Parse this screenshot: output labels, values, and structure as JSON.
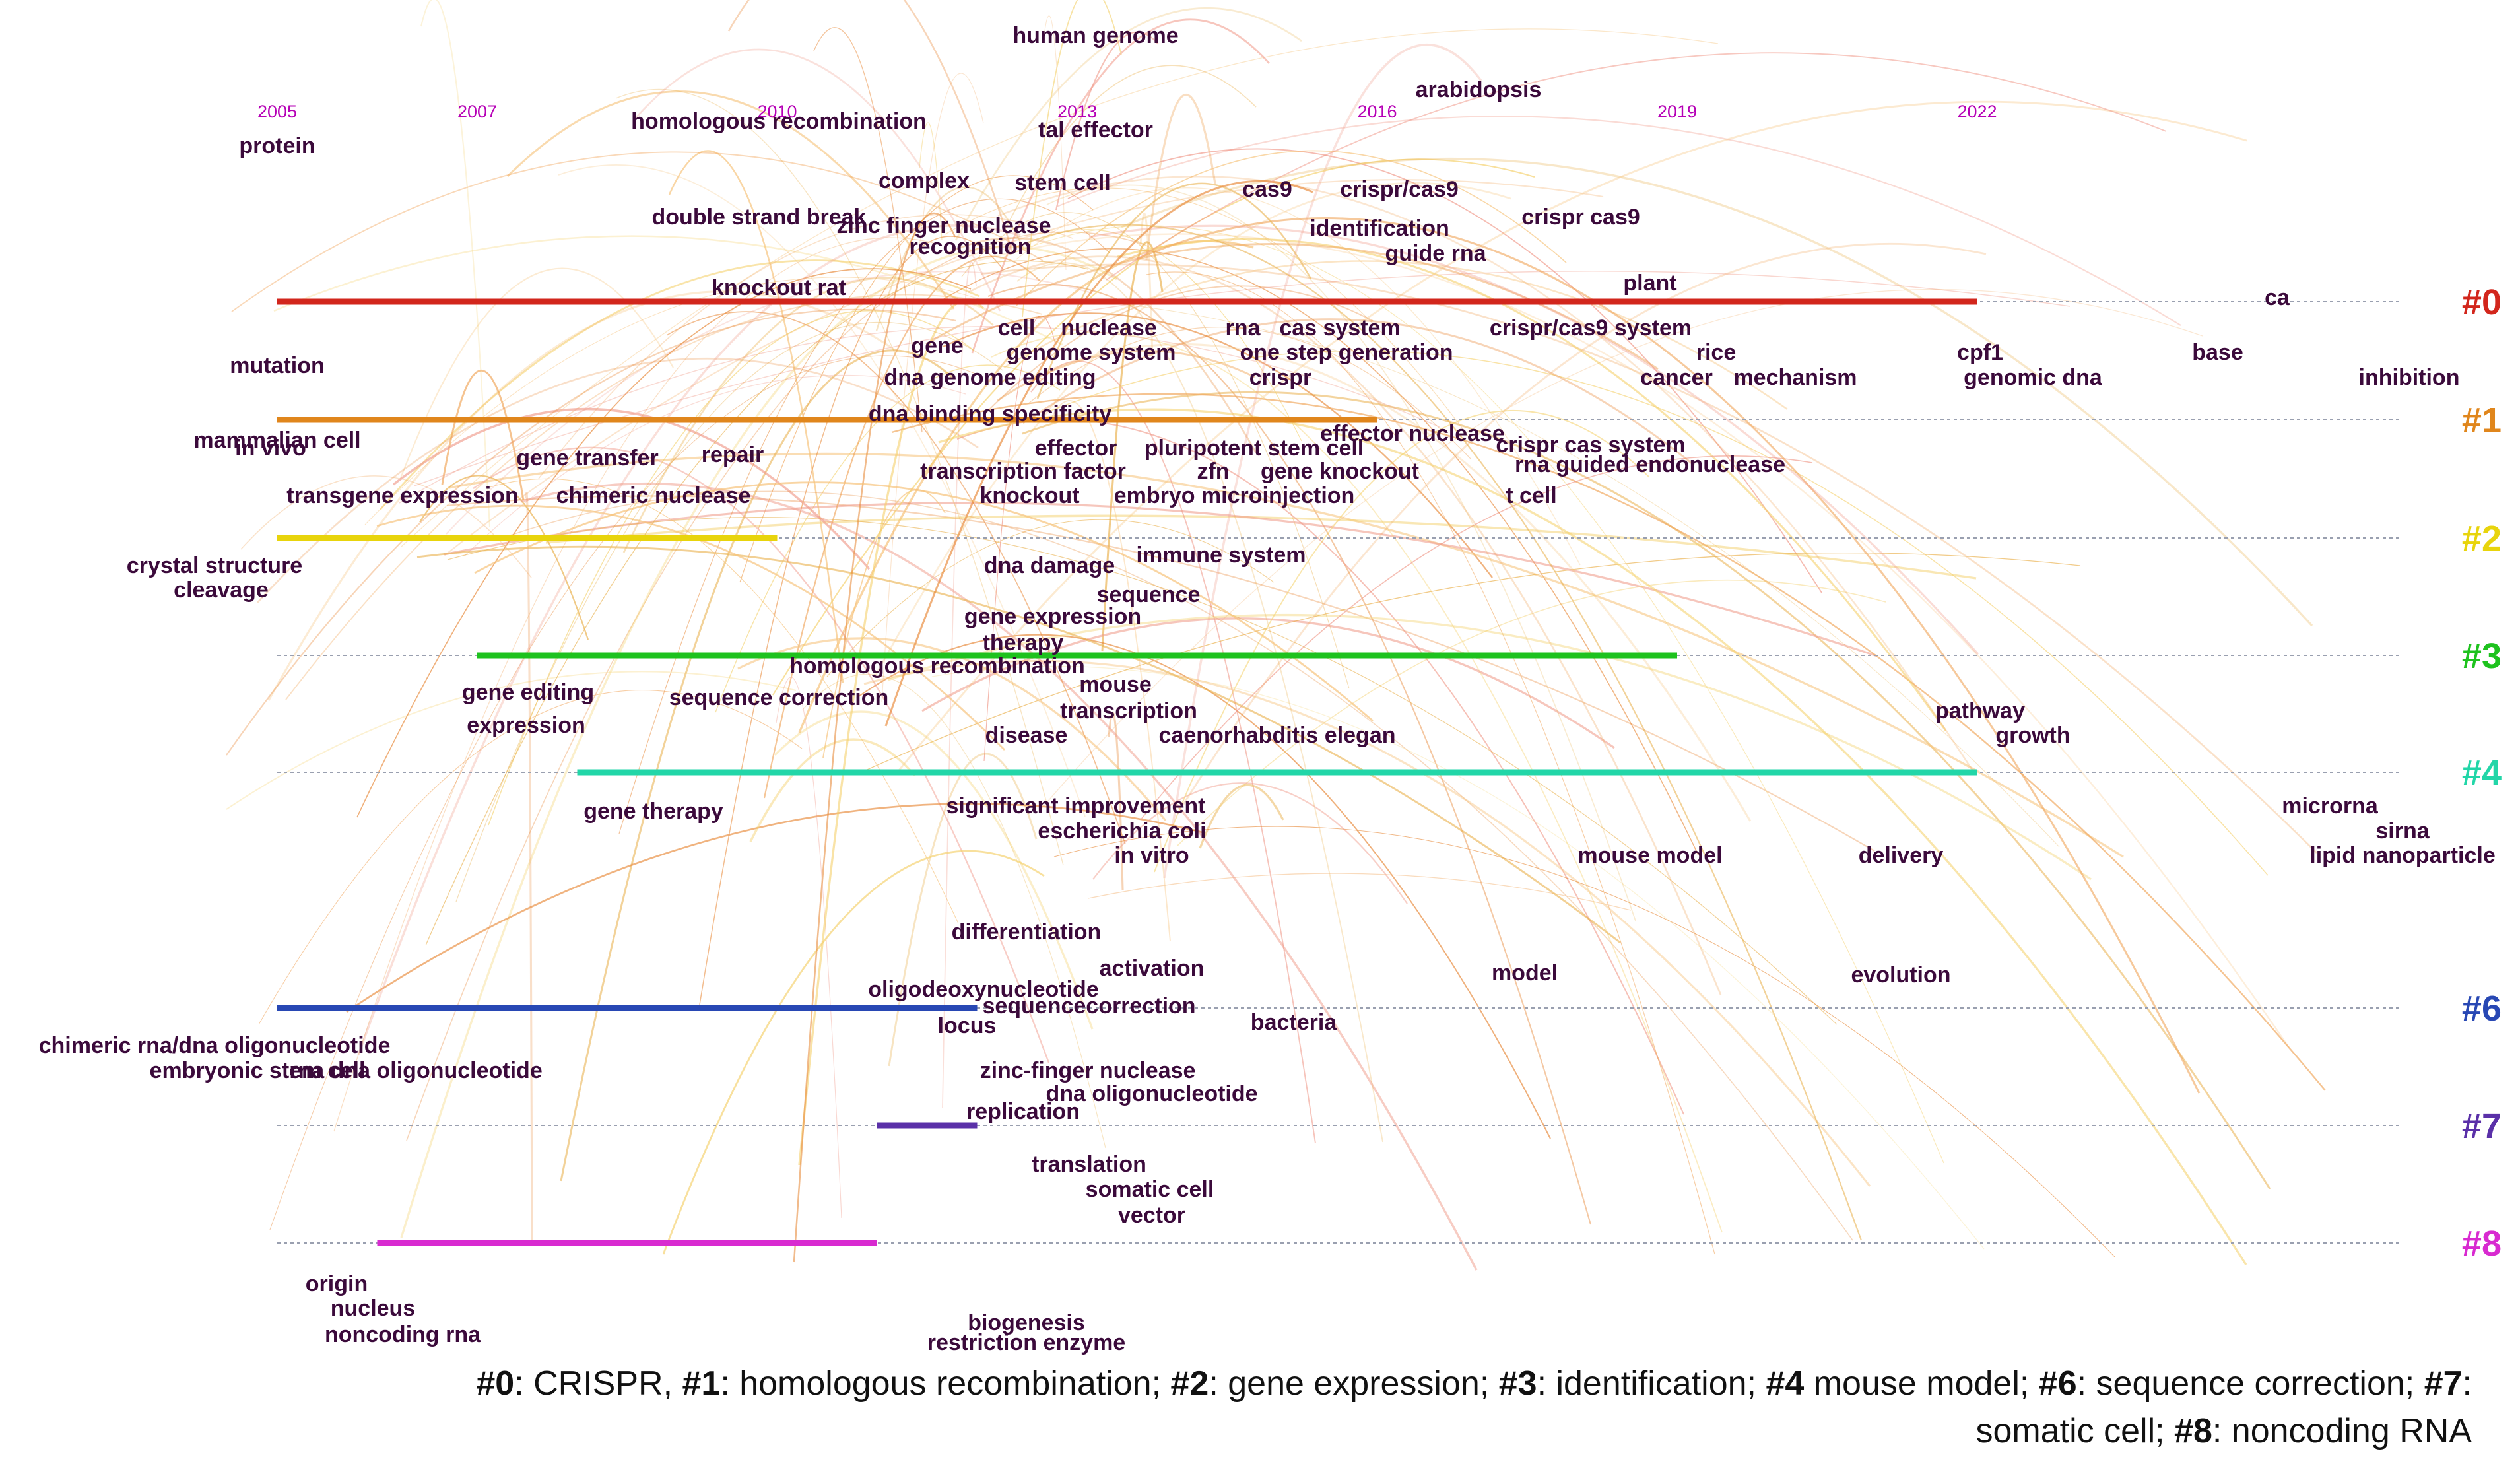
{
  "years": [
    "2005",
    "2007",
    "2010",
    "2013",
    "2016",
    "2019",
    "2022"
  ],
  "clusters": [
    {
      "id": "#0",
      "color": "#d2261c",
      "start": "2005",
      "end": "2022"
    },
    {
      "id": "#1",
      "color": "#e0861c",
      "start": "2005",
      "end": "2016"
    },
    {
      "id": "#2",
      "color": "#e8d40c",
      "start": "2005",
      "end": "2010"
    },
    {
      "id": "#3",
      "color": "#1ec21e",
      "start": "2007",
      "end": "2019"
    },
    {
      "id": "#4",
      "color": "#22d6a8",
      "start": "2008",
      "end": "2022"
    },
    {
      "id": "#6",
      "color": "#2848b4",
      "start": "2005",
      "end": "2012"
    },
    {
      "id": "#7",
      "color": "#5a30a8",
      "start": "2011",
      "end": "2012"
    },
    {
      "id": "#8",
      "color": "#d82ad0",
      "start": "2006",
      "end": "2011"
    }
  ],
  "keywords": [
    "human genome",
    "arabidopsis",
    "homologous recombination",
    "tal effector",
    "protein",
    "complex",
    "stem cell",
    "cas9",
    "crispr/cas9",
    "double strand break",
    "zinc finger nuclease",
    "identification",
    "crispr cas9",
    "recognition",
    "guide rna",
    "knockout rat",
    "plant",
    "ca",
    "cell",
    "nuclease",
    "rna",
    "cas system",
    "crispr/cas9 system",
    "gene",
    "genome system",
    "one step generation",
    "rice",
    "cpf1",
    "base",
    "mutation",
    "dna genome editing",
    "crispr",
    "cancer",
    "mechanism",
    "genomic dna",
    "inhibition",
    "dna binding specificity",
    "mammalian cell",
    "in vivo",
    "gene transfer",
    "repair",
    "effector",
    "pluripotent stem cell",
    "effector nuclease",
    "crispr cas system",
    "transcription factor",
    "zfn",
    "gene knockout",
    "rna guided endonuclease",
    "transgene expression",
    "chimeric nuclease",
    "knockout",
    "embryo microinjection",
    "t cell",
    "crystal structure",
    "cleavage",
    "dna damage",
    "immune system",
    "sequence",
    "gene expression",
    "therapy",
    "homologous recombination",
    "mouse",
    "gene editing",
    "sequence correction",
    "transcription",
    "pathway",
    "expression",
    "disease",
    "caenorhabditis elegan",
    "growth",
    "gene therapy",
    "significant improvement",
    "microrna",
    "escherichia coli",
    "sirna",
    "in vitro",
    "mouse model",
    "delivery",
    "lipid nanoparticle",
    "differentiation",
    "activation",
    "model",
    "evolution",
    "oligodeoxynucleotide",
    "sequencecorrection",
    "bacteria",
    "locus",
    "chimeric rna/dna oligonucleotide",
    "embryonic stem cell",
    "rna dna oligonucleotide",
    "zinc-finger nuclease",
    "dna oligonucleotide",
    "replication",
    "translation",
    "somatic cell",
    "vector",
    "origin",
    "nucleus",
    "noncoding rna",
    "biogenesis",
    "restriction enzyme"
  ],
  "caption": {
    "line1": [
      {
        "b": "#0",
        "t": ": CRISPR, "
      },
      {
        "b": "#1",
        "t": ": homologous recombination; "
      },
      {
        "b": "#2",
        "t": ": gene expression; "
      },
      {
        "b": "#3",
        "t": ": identification; "
      },
      {
        "b": "#4",
        "t": " mouse model; "
      },
      {
        "b": "#6",
        "t": ": sequence correction; "
      },
      {
        "b": "#7",
        "t": ":"
      }
    ],
    "line2": [
      {
        "b": "",
        "t": "somatic cell; "
      },
      {
        "b": "#8",
        "t": ": noncoding RNA"
      }
    ]
  }
}
